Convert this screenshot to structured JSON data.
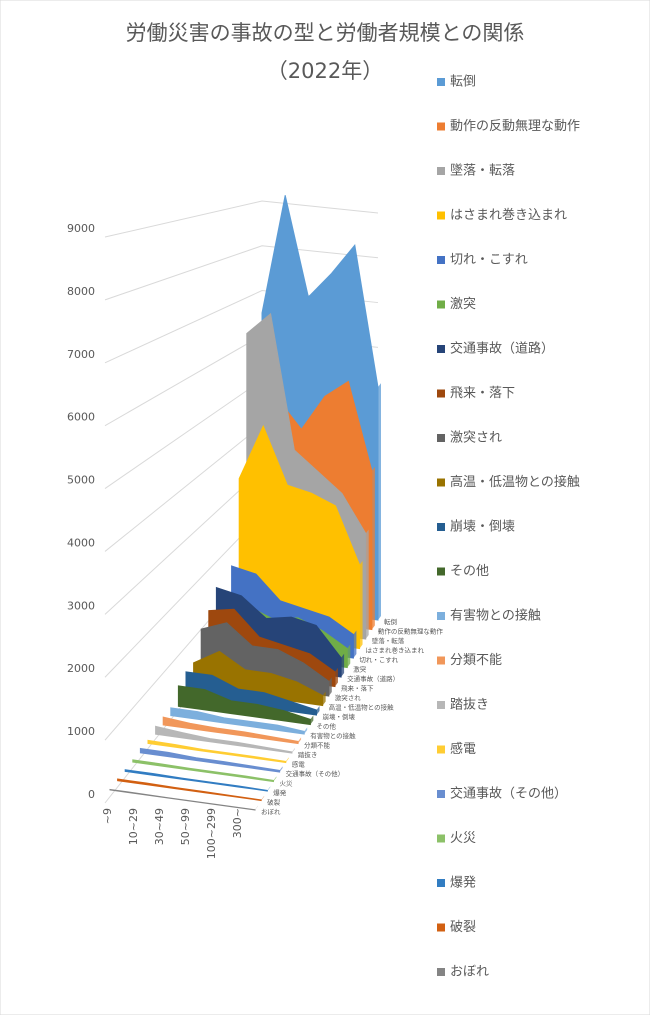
{
  "chart_data": {
    "type": "area3d",
    "title": "労働災害の事故の型と労働者規模との関係",
    "subtitle": "（2022年）",
    "categories": [
      "~9",
      "10~29",
      "30~49",
      "50~99",
      "100~299",
      "300~"
    ],
    "ylim": [
      0,
      9000
    ],
    "yticks": [
      0,
      1000,
      2000,
      3000,
      4000,
      5000,
      6000,
      7000,
      8000,
      9000
    ],
    "grid": true,
    "legend": "right",
    "series": [
      {
        "name": "転倒",
        "color": "#5b9bd5",
        "values": [
          6500,
          9200,
          7000,
          7600,
          8300,
          5200
        ]
      },
      {
        "name": "動作の反動無理な動作",
        "color": "#ed7d31",
        "values": [
          3000,
          4800,
          4200,
          5000,
          5400,
          3500
        ]
      },
      {
        "name": "墜落・転落",
        "color": "#a5a5a5",
        "values": [
          6300,
          6800,
          3900,
          3500,
          3100,
          2300
        ]
      },
      {
        "name": "はさまれ巻き込まれ",
        "color": "#ffc000",
        "values": [
          3300,
          4500,
          3300,
          3200,
          3000,
          1800
        ]
      },
      {
        "name": "切れ・こすれ",
        "color": "#4472c4",
        "values": [
          1600,
          1500,
          1000,
          900,
          800,
          500
        ]
      },
      {
        "name": "激突",
        "color": "#70ad47",
        "values": [
          700,
          1000,
          800,
          900,
          700,
          400
        ]
      },
      {
        "name": "交通事故（道路）",
        "color": "#264478",
        "values": [
          1500,
          1400,
          1000,
          1100,
          1000,
          400
        ]
      },
      {
        "name": "飛来・落下",
        "color": "#9e480e",
        "values": [
          1200,
          1300,
          800,
          700,
          600,
          300
        ]
      },
      {
        "name": "激突され",
        "color": "#636363",
        "values": [
          1000,
          1200,
          800,
          800,
          600,
          300
        ]
      },
      {
        "name": "高温・低温物との接触",
        "color": "#997300",
        "values": [
          500,
          800,
          500,
          500,
          400,
          200
        ]
      },
      {
        "name": "崩壊・倒壊",
        "color": "#255e91",
        "values": [
          500,
          500,
          300,
          300,
          200,
          100
        ]
      },
      {
        "name": "その他",
        "color": "#43682b",
        "values": [
          400,
          400,
          250,
          250,
          200,
          100
        ]
      },
      {
        "name": "有害物との接触",
        "color": "#7cafdd",
        "values": [
          150,
          150,
          100,
          100,
          100,
          50
        ]
      },
      {
        "name": "分類不能",
        "color": "#f1975a",
        "values": [
          150,
          100,
          80,
          80,
          60,
          40
        ]
      },
      {
        "name": "踏抜き",
        "color": "#b7b7b7",
        "values": [
          150,
          100,
          60,
          60,
          40,
          20
        ]
      },
      {
        "name": "感電",
        "color": "#ffcd33",
        "values": [
          60,
          50,
          30,
          30,
          30,
          20
        ]
      },
      {
        "name": "交通事故（その他）",
        "color": "#698ed0",
        "values": [
          80,
          80,
          50,
          50,
          40,
          30
        ]
      },
      {
        "name": "火災",
        "color": "#8cc168",
        "values": [
          40,
          40,
          30,
          30,
          30,
          20
        ]
      },
      {
        "name": "爆発",
        "color": "#327dc2",
        "values": [
          30,
          30,
          20,
          20,
          20,
          10
        ]
      },
      {
        "name": "破裂",
        "color": "#d26012",
        "values": [
          30,
          30,
          20,
          20,
          15,
          10
        ]
      },
      {
        "name": "おぼれ",
        "color": "#848484",
        "values": [
          10,
          10,
          5,
          5,
          5,
          5
        ]
      }
    ]
  }
}
